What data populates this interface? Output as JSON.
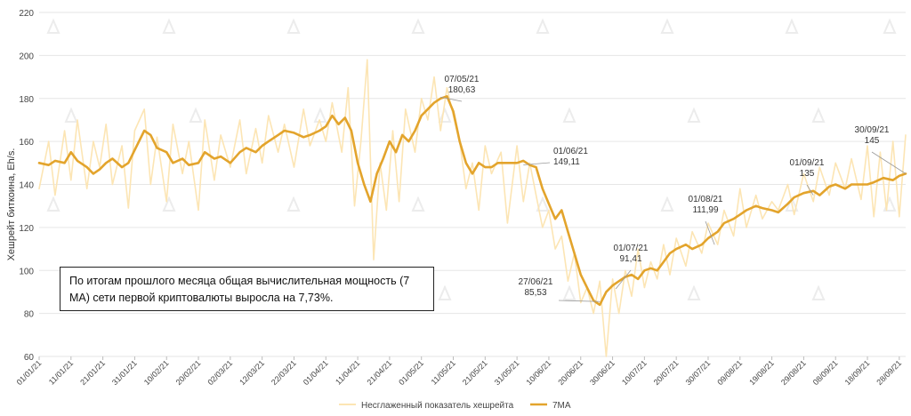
{
  "colors": {
    "raw": "#fce5b4",
    "ma": "#e3a42c",
    "grid": "#e6e6e6",
    "leader": "#999999"
  },
  "note": {
    "text": "По итогам прошлого месяца общая вычислительная мощность (7 MA) сети первой криптовалюты выросла на 7,73%."
  },
  "chart_data": {
    "type": "line",
    "ylabel": "Хешрейт биткоина, Eh/s.",
    "ylim": [
      60,
      220
    ],
    "yticks": [
      60,
      80,
      100,
      120,
      140,
      160,
      180,
      200,
      220
    ],
    "grid": true,
    "xlim": [
      0,
      272
    ],
    "xticks": [
      {
        "label": "01/01/21",
        "day": 0
      },
      {
        "label": "11/01/21",
        "day": 10
      },
      {
        "label": "21/01/21",
        "day": 20
      },
      {
        "label": "31/01/21",
        "day": 30
      },
      {
        "label": "10/02/21",
        "day": 40
      },
      {
        "label": "20/02/21",
        "day": 50
      },
      {
        "label": "02/03/21",
        "day": 60
      },
      {
        "label": "12/03/21",
        "day": 70
      },
      {
        "label": "22/03/21",
        "day": 80
      },
      {
        "label": "01/04/21",
        "day": 90
      },
      {
        "label": "11/04/21",
        "day": 100
      },
      {
        "label": "21/04/21",
        "day": 110
      },
      {
        "label": "01/05/21",
        "day": 120
      },
      {
        "label": "11/05/21",
        "day": 130
      },
      {
        "label": "21/05/21",
        "day": 140
      },
      {
        "label": "31/05/21",
        "day": 150
      },
      {
        "label": "10/06/21",
        "day": 160
      },
      {
        "label": "20/06/21",
        "day": 170
      },
      {
        "label": "30/06/21",
        "day": 180
      },
      {
        "label": "10/07/21",
        "day": 190
      },
      {
        "label": "20/07/21",
        "day": 200
      },
      {
        "label": "30/07/21",
        "day": 210
      },
      {
        "label": "09/08/21",
        "day": 220
      },
      {
        "label": "19/08/21",
        "day": 230
      },
      {
        "label": "29/08/21",
        "day": 240
      },
      {
        "label": "08/09/21",
        "day": 250
      },
      {
        "label": "18/09/21",
        "day": 260
      },
      {
        "label": "28/09/21",
        "day": 270
      }
    ],
    "series": [
      {
        "name": "Несглаженный показатель хешрейта",
        "x": [
          0,
          3,
          5,
          8,
          10,
          12,
          15,
          17,
          19,
          21,
          23,
          26,
          28,
          30,
          33,
          35,
          37,
          40,
          42,
          45,
          47,
          50,
          52,
          55,
          57,
          60,
          63,
          65,
          68,
          70,
          72,
          75,
          77,
          80,
          83,
          85,
          88,
          90,
          92,
          95,
          97,
          99,
          101,
          103,
          105,
          107,
          109,
          111,
          113,
          115,
          118,
          120,
          122,
          124,
          126,
          128,
          130,
          132,
          134,
          136,
          138,
          140,
          142,
          145,
          147,
          150,
          152,
          154,
          156,
          158,
          160,
          162,
          164,
          166,
          168,
          170,
          172,
          174,
          176,
          178,
          180,
          182,
          184,
          186,
          188,
          190,
          192,
          194,
          196,
          198,
          200,
          203,
          205,
          208,
          210,
          213,
          215,
          218,
          220,
          222,
          225,
          227,
          230,
          232,
          235,
          237,
          240,
          243,
          245,
          248,
          250,
          253,
          255,
          258,
          260,
          262,
          264,
          266,
          268,
          270,
          272
        ],
        "y": [
          138,
          160,
          135,
          165,
          142,
          170,
          138,
          160,
          148,
          168,
          140,
          158,
          129,
          165,
          175,
          140,
          162,
          132,
          168,
          145,
          160,
          128,
          170,
          142,
          163,
          148,
          170,
          145,
          166,
          150,
          172,
          155,
          168,
          148,
          175,
          158,
          170,
          160,
          178,
          155,
          185,
          130,
          160,
          198,
          105,
          150,
          128,
          165,
          132,
          175,
          155,
          180,
          170,
          190,
          165,
          185,
          172,
          160,
          138,
          150,
          128,
          158,
          145,
          155,
          122,
          158,
          132,
          150,
          135,
          120,
          128,
          110,
          116,
          95,
          108,
          85,
          92,
          80,
          95,
          60,
          96,
          80,
          100,
          88,
          110,
          92,
          104,
          96,
          112,
          98,
          115,
          102,
          118,
          108,
          122,
          112,
          128,
          116,
          138,
          120,
          135,
          124,
          132,
          128,
          140,
          126,
          145,
          132,
          148,
          135,
          150,
          138,
          152,
          133,
          158,
          125,
          155,
          128,
          160,
          125,
          163
        ]
      },
      {
        "name": "7MA",
        "x": [
          0,
          3,
          5,
          8,
          10,
          12,
          15,
          17,
          19,
          21,
          23,
          26,
          28,
          30,
          33,
          35,
          37,
          40,
          42,
          45,
          47,
          50,
          52,
          55,
          57,
          60,
          63,
          65,
          68,
          70,
          72,
          75,
          77,
          80,
          83,
          85,
          88,
          90,
          92,
          94,
          96,
          98,
          100,
          102,
          104,
          106,
          108,
          110,
          112,
          114,
          116,
          118,
          120,
          122,
          124,
          126,
          128,
          130,
          132,
          134,
          136,
          138,
          140,
          142,
          144,
          146,
          148,
          150,
          152,
          154,
          156,
          158,
          160,
          162,
          164,
          166,
          168,
          170,
          172,
          174,
          176,
          178,
          180,
          182,
          184,
          186,
          188,
          190,
          192,
          194,
          196,
          198,
          200,
          203,
          205,
          208,
          210,
          213,
          215,
          218,
          220,
          222,
          225,
          227,
          230,
          232,
          235,
          237,
          240,
          243,
          245,
          248,
          250,
          253,
          255,
          258,
          260,
          262,
          265,
          268,
          270,
          272
        ],
        "y": [
          150,
          149,
          151,
          150,
          155,
          151,
          148,
          145,
          147,
          150,
          152,
          148,
          150,
          156,
          165,
          163,
          157,
          155,
          150,
          152,
          149,
          150,
          155,
          152,
          153,
          150,
          155,
          157,
          155,
          158,
          160,
          163,
          165,
          164,
          162,
          163,
          165,
          167,
          172,
          168,
          171,
          165,
          150,
          140,
          132,
          145,
          152,
          160,
          155,
          163,
          160,
          165,
          172,
          175,
          178,
          180,
          181,
          174,
          160,
          150,
          145,
          150,
          148,
          148,
          150,
          150,
          150,
          150,
          151,
          149,
          148,
          138,
          131,
          124,
          128,
          118,
          108,
          98,
          92,
          86,
          84,
          90,
          93,
          95,
          97,
          98,
          96,
          100,
          101,
          100,
          104,
          108,
          110,
          112,
          110,
          112,
          115,
          118,
          122,
          124,
          126,
          128,
          130,
          129,
          128,
          127,
          131,
          134,
          136,
          137,
          135,
          139,
          140,
          138,
          140,
          140,
          140,
          141,
          143,
          142,
          144,
          145
        ]
      }
    ],
    "annotations": [
      {
        "date": "07/05/21",
        "value": "180,63",
        "day": 126,
        "y": 180.63
      },
      {
        "date": "01/06/21",
        "value": "149,11",
        "day": 152,
        "y": 149.11
      },
      {
        "date": "27/06/21",
        "value": "85,53",
        "day": 176,
        "y": 85.53
      },
      {
        "date": "01/07/21",
        "value": "91,41",
        "day": 181,
        "y": 91.41
      },
      {
        "date": "01/08/21",
        "value": "111,99",
        "day": 212,
        "y": 111.99
      },
      {
        "date": "01/09/21",
        "value": "135",
        "day": 243,
        "y": 135
      },
      {
        "date": "30/09/21",
        "value": "145",
        "day": 272,
        "y": 145
      }
    ]
  }
}
